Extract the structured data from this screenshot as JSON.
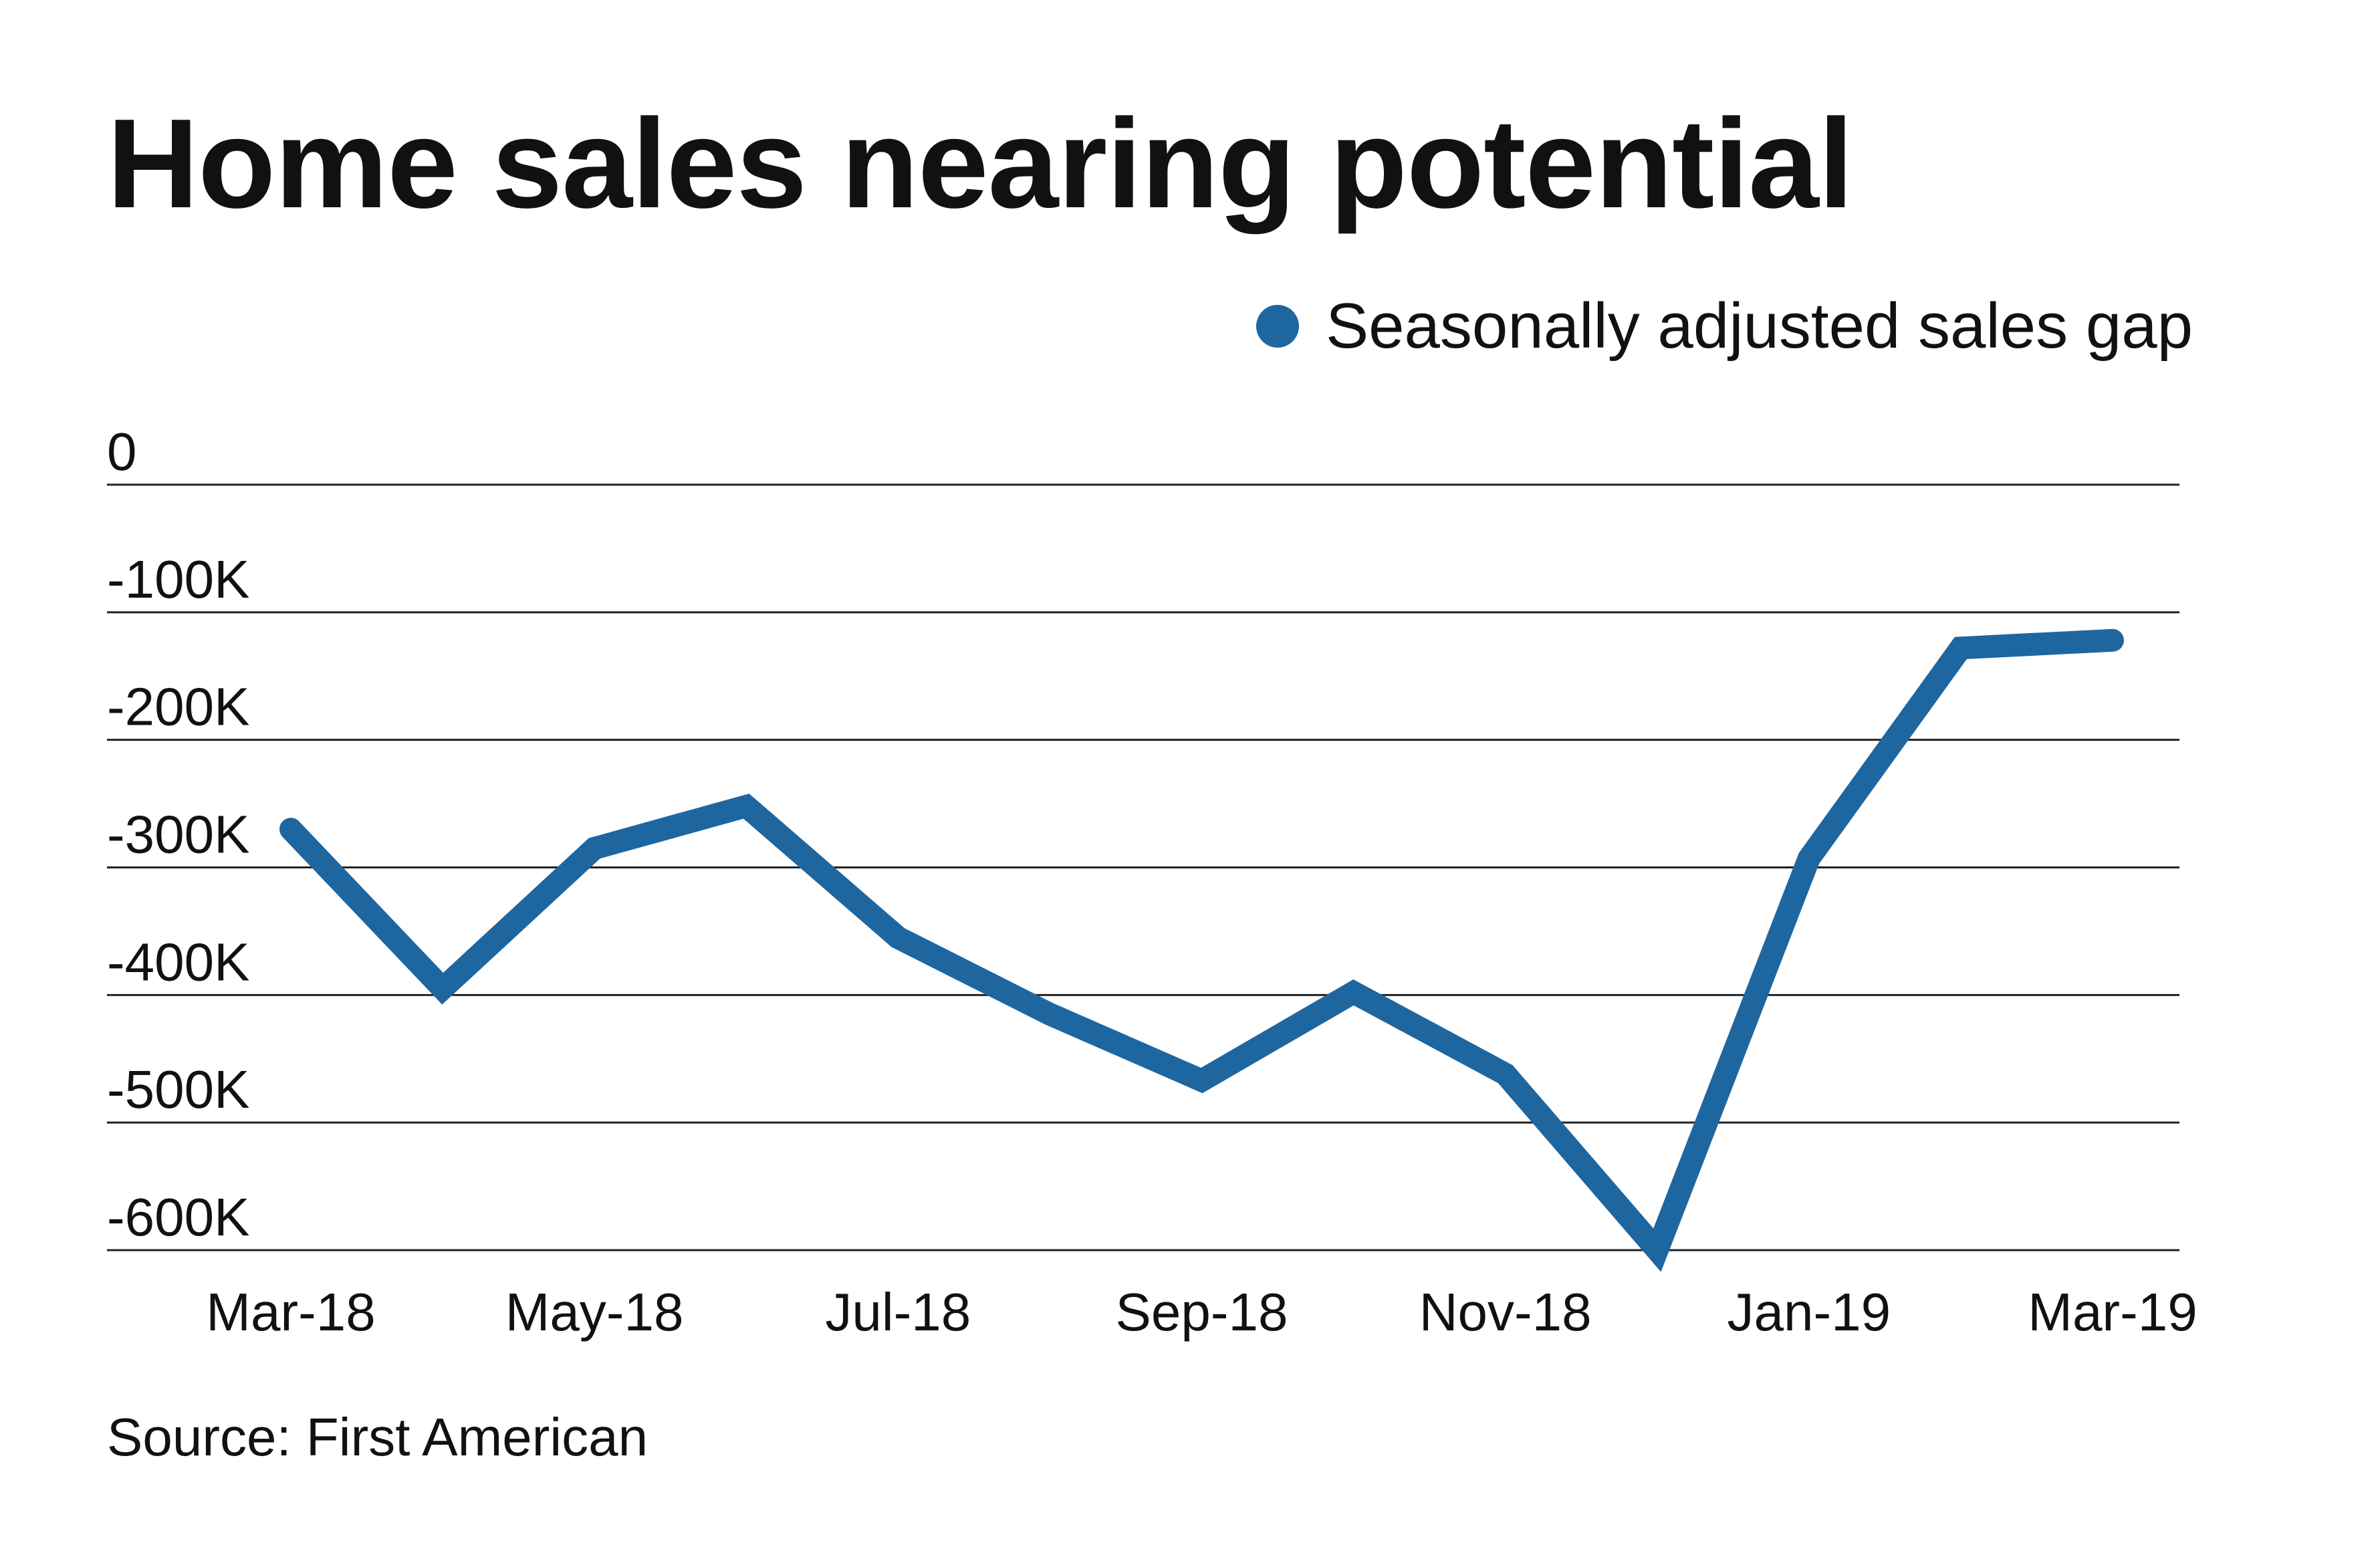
{
  "chart_data": {
    "type": "line",
    "title": "Home sales nearing potential",
    "xlabel": "",
    "ylabel": "",
    "x": [
      "Mar-18",
      "Apr-18",
      "May-18",
      "Jun-18",
      "Jul-18",
      "Aug-18",
      "Sep-18",
      "Oct-18",
      "Nov-18",
      "Dec-18",
      "Jan-19",
      "Feb-19",
      "Mar-19"
    ],
    "series": [
      {
        "name": "Seasonally adjusted sales gap",
        "color": "#1e66a0",
        "values": [
          -270000,
          -395000,
          -285000,
          -252000,
          -355000,
          -415000,
          -467000,
          -398000,
          -462000,
          -600000,
          -293000,
          -128000,
          -122000
        ]
      }
    ],
    "x_tick_labels": [
      "Mar-18",
      "May-18",
      "Jul-18",
      "Sep-18",
      "Nov-18",
      "Jan-19",
      "Mar-19"
    ],
    "y_ticks": [
      0,
      -100000,
      -200000,
      -300000,
      -400000,
      -500000,
      -600000
    ],
    "y_tick_labels": [
      "0",
      "-100K",
      "-200K",
      "-300K",
      "-400K",
      "-500K",
      "-600K"
    ],
    "ylim": [
      -600000,
      0
    ],
    "grid": true,
    "legend": "top-right"
  },
  "legend": {
    "label": "Seasonally adjusted sales gap",
    "color": "#1e66a0"
  },
  "source": "Source: First American"
}
